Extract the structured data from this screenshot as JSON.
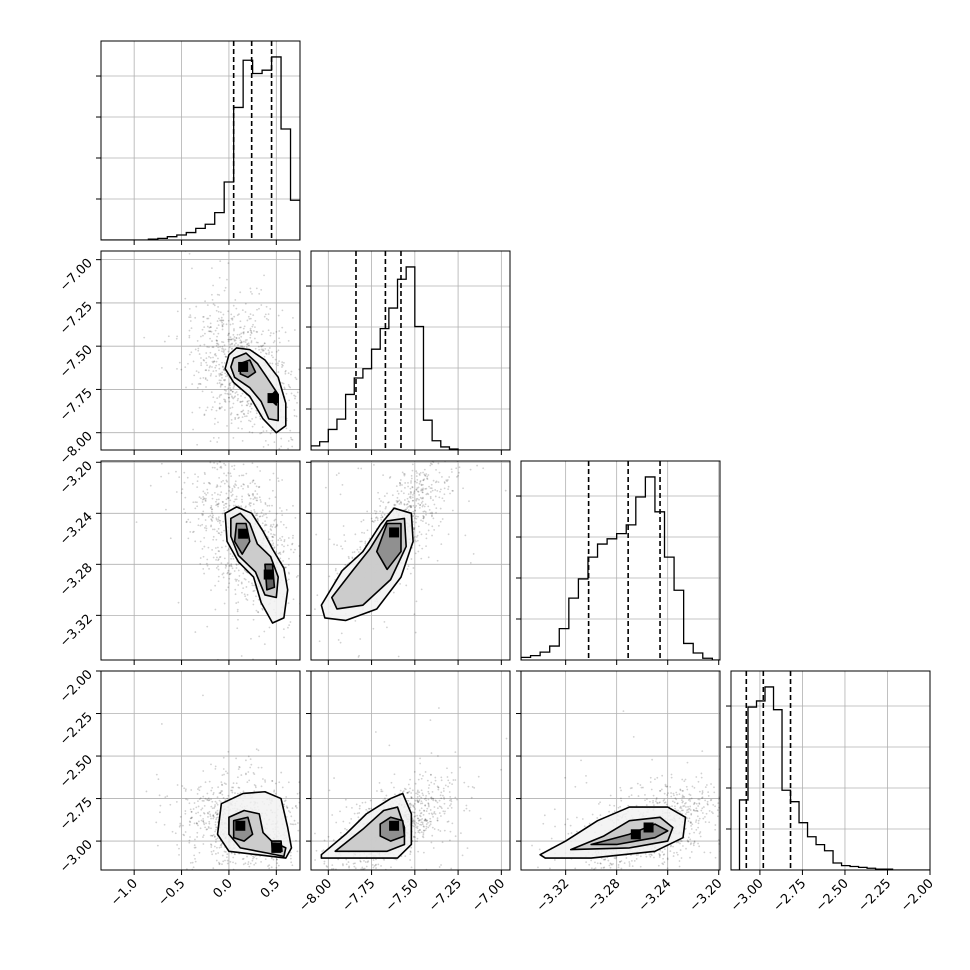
{
  "chart_data": {
    "type": "corner",
    "grid": true,
    "parameters": [
      {
        "range": [
          -1.35,
          0.75
        ],
        "ticks": [
          -1.0,
          -0.5,
          0.0,
          0.5
        ],
        "tick_labels": [
          "−1.0",
          "−0.5",
          "0.0",
          "0.5"
        ],
        "quantiles": [
          0.05,
          0.24,
          0.45
        ],
        "hist_x": [
          -1.35,
          -1.25,
          -1.15,
          -1.05,
          -0.95,
          -0.85,
          -0.75,
          -0.65,
          -0.55,
          -0.45,
          -0.35,
          -0.25,
          -0.15,
          -0.05,
          0.05,
          0.15,
          0.25,
          0.35,
          0.45,
          0.55,
          0.65,
          0.75
        ],
        "hist_counts": [
          0,
          0,
          0,
          0,
          0,
          1,
          2,
          4,
          6,
          9,
          14,
          19,
          33,
          70,
          160,
          217,
          201,
          205,
          221,
          134,
          48,
          5
        ]
      },
      {
        "range": [
          -8.1,
          -6.95
        ],
        "ticks": [
          -8.0,
          -7.75,
          -7.5,
          -7.25,
          -7.0
        ],
        "tick_labels": [
          "−8.00",
          "−7.75",
          "−7.50",
          "−7.25",
          "−7.00"
        ],
        "quantiles": [
          -7.84,
          -7.67,
          -7.58
        ],
        "hist_x": [
          -8.1,
          -8.05,
          -8.0,
          -7.95,
          -7.9,
          -7.85,
          -7.8,
          -7.75,
          -7.7,
          -7.65,
          -7.6,
          -7.55,
          -7.5,
          -7.45,
          -7.4,
          -7.35,
          -7.3,
          -7.25,
          -7.2,
          -7.15,
          -7.1,
          -7.05,
          -7.0,
          -6.95
        ],
        "hist_counts": [
          4,
          8,
          20,
          30,
          54,
          70,
          79,
          98,
          118,
          138,
          166,
          178,
          120,
          29,
          9,
          3,
          1,
          0,
          0,
          0,
          0,
          0,
          0,
          0
        ]
      },
      {
        "range": [
          -3.355,
          -3.199
        ],
        "ticks": [
          -3.32,
          -3.28,
          -3.24,
          -3.2
        ],
        "tick_labels": [
          "−3.32",
          "−3.28",
          "−3.24",
          "−3.20"
        ],
        "quantiles": [
          -3.302,
          -3.271,
          -3.246
        ],
        "hist_x": [
          -3.355,
          -3.3475,
          -3.34,
          -3.3325,
          -3.325,
          -3.3175,
          -3.31,
          -3.3025,
          -3.295,
          -3.2875,
          -3.28,
          -3.2725,
          -3.265,
          -3.2575,
          -3.25,
          -3.2425,
          -3.235,
          -3.2275,
          -3.22,
          -3.2125,
          -3.205,
          -3.199
        ],
        "hist_counts": [
          3,
          5,
          9,
          16,
          36,
          71,
          93,
          118,
          133,
          139,
          145,
          155,
          187,
          210,
          170,
          118,
          80,
          19,
          8,
          2,
          0,
          0
        ]
      },
      {
        "range": [
          -3.17,
          -2.0
        ],
        "ticks": [
          -3.0,
          -2.75,
          -2.5,
          -2.25,
          -2.0
        ],
        "tick_labels": [
          "−3.00",
          "−2.75",
          "−2.50",
          "−2.25",
          "−2.00"
        ],
        "quantiles": [
          -3.08,
          -2.98,
          -2.82
        ],
        "hist_x": [
          -3.17,
          -3.12,
          -3.07,
          -3.02,
          -2.97,
          -2.92,
          -2.87,
          -2.82,
          -2.77,
          -2.72,
          -2.67,
          -2.62,
          -2.57,
          -2.52,
          -2.47,
          -2.42,
          -2.37,
          -2.32,
          -2.27,
          -2.22,
          -2.17,
          -2.12,
          -2.07,
          -2.02,
          -2.0
        ],
        "hist_counts": [
          0,
          80,
          186,
          193,
          209,
          183,
          91,
          78,
          54,
          38,
          29,
          22,
          8,
          5,
          4,
          3,
          2,
          1,
          1,
          0,
          0,
          0,
          0,
          0,
          0
        ]
      }
    ],
    "pairs": [
      {
        "row": 1,
        "col": 0,
        "mode": [
          0.15,
          -7.62
        ],
        "spread": [
          0.28,
          0.2
        ],
        "rho": -0.35,
        "peaks": [
          [
            0.15,
            -7.62
          ],
          [
            0.46,
            -7.8
          ]
        ],
        "contours": [
          [
            [
              0.0,
              -7.55
            ],
            [
              0.08,
              -7.51
            ],
            [
              0.22,
              -7.52
            ],
            [
              0.38,
              -7.58
            ],
            [
              0.52,
              -7.68
            ],
            [
              0.6,
              -7.83
            ],
            [
              0.6,
              -7.96
            ],
            [
              0.5,
              -8.0
            ],
            [
              0.36,
              -7.92
            ],
            [
              0.22,
              -7.79
            ],
            [
              0.05,
              -7.71
            ],
            [
              -0.04,
              -7.63
            ]
          ],
          [
            [
              0.05,
              -7.57
            ],
            [
              0.18,
              -7.54
            ],
            [
              0.3,
              -7.6
            ],
            [
              0.4,
              -7.68
            ],
            [
              0.52,
              -7.78
            ],
            [
              0.52,
              -7.93
            ],
            [
              0.42,
              -7.92
            ],
            [
              0.34,
              -7.82
            ],
            [
              0.22,
              -7.74
            ],
            [
              0.06,
              -7.68
            ],
            [
              0.02,
              -7.62
            ]
          ],
          [
            [
              0.12,
              -7.6
            ],
            [
              0.22,
              -7.58
            ],
            [
              0.28,
              -7.65
            ],
            [
              0.2,
              -7.68
            ],
            [
              0.12,
              -7.66
            ]
          ],
          [
            [
              0.42,
              -7.8
            ],
            [
              0.49,
              -7.76
            ],
            [
              0.5,
              -7.84
            ]
          ]
        ]
      },
      {
        "row": 2,
        "col": 0,
        "mode": [
          0.15,
          -3.256
        ],
        "spread": [
          0.3,
          0.032
        ],
        "rho": -0.45,
        "peaks": [
          [
            0.15,
            -3.256
          ],
          [
            0.42,
            -3.288
          ]
        ],
        "contours": [
          [
            [
              -0.04,
              -3.24
            ],
            [
              0.08,
              -3.235
            ],
            [
              0.24,
              -3.24
            ],
            [
              0.36,
              -3.254
            ],
            [
              0.46,
              -3.268
            ],
            [
              0.58,
              -3.283
            ],
            [
              0.62,
              -3.3
            ],
            [
              0.58,
              -3.322
            ],
            [
              0.46,
              -3.326
            ],
            [
              0.34,
              -3.31
            ],
            [
              0.26,
              -3.29
            ],
            [
              0.1,
              -3.278
            ],
            [
              -0.02,
              -3.262
            ]
          ],
          [
            [
              0.02,
              -3.244
            ],
            [
              0.12,
              -3.24
            ],
            [
              0.22,
              -3.248
            ],
            [
              0.3,
              -3.264
            ],
            [
              0.44,
              -3.274
            ],
            [
              0.52,
              -3.29
            ],
            [
              0.5,
              -3.306
            ],
            [
              0.38,
              -3.304
            ],
            [
              0.28,
              -3.286
            ],
            [
              0.1,
              -3.273
            ],
            [
              0.02,
              -3.258
            ]
          ],
          [
            [
              0.08,
              -3.248
            ],
            [
              0.18,
              -3.248
            ],
            [
              0.22,
              -3.262
            ],
            [
              0.14,
              -3.272
            ],
            [
              0.06,
              -3.262
            ]
          ],
          [
            [
              0.38,
              -3.28
            ],
            [
              0.46,
              -3.28
            ],
            [
              0.48,
              -3.298
            ],
            [
              0.4,
              -3.3
            ]
          ]
        ]
      },
      {
        "row": 2,
        "col": 1,
        "mode": [
          -7.62,
          -3.255
        ],
        "spread": [
          0.16,
          0.03
        ],
        "rho": 0.8,
        "peaks": [
          [
            -7.62,
            -3.255
          ]
        ],
        "contours": [
          [
            [
              -8.04,
              -3.312
            ],
            [
              -7.92,
              -3.285
            ],
            [
              -7.8,
              -3.27
            ],
            [
              -7.7,
              -3.249
            ],
            [
              -7.62,
              -3.236
            ],
            [
              -7.52,
              -3.24
            ],
            [
              -7.51,
              -3.262
            ],
            [
              -7.58,
              -3.29
            ],
            [
              -7.72,
              -3.315
            ],
            [
              -7.9,
              -3.324
            ],
            [
              -8.02,
              -3.322
            ]
          ],
          [
            [
              -7.98,
              -3.306
            ],
            [
              -7.86,
              -3.285
            ],
            [
              -7.76,
              -3.268
            ],
            [
              -7.66,
              -3.246
            ],
            [
              -7.56,
              -3.244
            ],
            [
              -7.55,
              -3.266
            ],
            [
              -7.64,
              -3.292
            ],
            [
              -7.8,
              -3.312
            ],
            [
              -7.95,
              -3.315
            ]
          ],
          [
            [
              -7.72,
              -3.27
            ],
            [
              -7.66,
              -3.248
            ],
            [
              -7.58,
              -3.248
            ],
            [
              -7.58,
              -3.27
            ],
            [
              -7.66,
              -3.284
            ]
          ]
        ]
      },
      {
        "row": 3,
        "col": 0,
        "mode": [
          0.12,
          -2.91
        ],
        "spread": [
          0.33,
          0.15
        ],
        "rho": -0.1,
        "peaks": [
          [
            0.12,
            -2.91
          ],
          [
            0.5,
            -3.04
          ]
        ],
        "contours": [
          [
            [
              -0.08,
              -2.78
            ],
            [
              0.15,
              -2.72
            ],
            [
              0.38,
              -2.71
            ],
            [
              0.55,
              -2.75
            ],
            [
              0.62,
              -2.92
            ],
            [
              0.66,
              -3.04
            ],
            [
              0.6,
              -3.1
            ],
            [
              0.3,
              -3.08
            ],
            [
              0.0,
              -3.06
            ],
            [
              -0.12,
              -2.96
            ]
          ],
          [
            [
              0.0,
              -2.86
            ],
            [
              0.16,
              -2.82
            ],
            [
              0.32,
              -2.84
            ],
            [
              0.36,
              -2.95
            ],
            [
              0.45,
              -3.0
            ],
            [
              0.6,
              -3.04
            ],
            [
              0.58,
              -3.09
            ],
            [
              0.4,
              -3.07
            ],
            [
              0.12,
              -3.04
            ],
            [
              0.0,
              -2.96
            ]
          ],
          [
            [
              0.05,
              -2.88
            ],
            [
              0.2,
              -2.86
            ],
            [
              0.25,
              -2.96
            ],
            [
              0.16,
              -3.0
            ],
            [
              0.05,
              -2.98
            ]
          ],
          [
            [
              0.45,
              -3.0
            ],
            [
              0.55,
              -3.0
            ],
            [
              0.56,
              -3.06
            ],
            [
              0.46,
              -3.06
            ]
          ]
        ]
      },
      {
        "row": 3,
        "col": 1,
        "mode": [
          -7.62,
          -2.91
        ],
        "spread": [
          0.17,
          0.14
        ],
        "rho": 0.7,
        "peaks": [
          [
            -7.62,
            -2.91
          ]
        ],
        "contours": [
          [
            [
              -8.04,
              -3.08
            ],
            [
              -7.9,
              -2.96
            ],
            [
              -7.78,
              -2.84
            ],
            [
              -7.64,
              -2.75
            ],
            [
              -7.57,
              -2.72
            ],
            [
              -7.52,
              -2.84
            ],
            [
              -7.52,
              -3.02
            ],
            [
              -7.6,
              -3.1
            ],
            [
              -7.9,
              -3.1
            ],
            [
              -8.04,
              -3.1
            ]
          ],
          [
            [
              -7.96,
              -3.06
            ],
            [
              -7.8,
              -2.93
            ],
            [
              -7.68,
              -2.82
            ],
            [
              -7.6,
              -2.8
            ],
            [
              -7.56,
              -2.92
            ],
            [
              -7.56,
              -3.02
            ],
            [
              -7.66,
              -3.06
            ]
          ],
          [
            [
              -7.7,
              -2.9
            ],
            [
              -7.64,
              -2.86
            ],
            [
              -7.57,
              -2.88
            ],
            [
              -7.56,
              -2.97
            ],
            [
              -7.64,
              -3.0
            ],
            [
              -7.7,
              -2.97
            ]
          ]
        ]
      },
      {
        "row": 3,
        "col": 2,
        "mode": [
          -3.255,
          -2.92
        ],
        "spread": [
          0.03,
          0.14
        ],
        "rho": 0.55,
        "peaks": [
          [
            -3.255,
            -2.92
          ],
          [
            -3.265,
            -2.96
          ]
        ],
        "contours": [
          [
            [
              -3.34,
              -3.08
            ],
            [
              -3.32,
              -3.0
            ],
            [
              -3.295,
              -2.88
            ],
            [
              -3.27,
              -2.8
            ],
            [
              -3.24,
              -2.8
            ],
            [
              -3.226,
              -2.86
            ],
            [
              -3.228,
              -2.98
            ],
            [
              -3.25,
              -3.06
            ],
            [
              -3.3,
              -3.1
            ],
            [
              -3.336,
              -3.1
            ]
          ],
          [
            [
              -3.316,
              -3.05
            ],
            [
              -3.29,
              -2.97
            ],
            [
              -3.27,
              -2.88
            ],
            [
              -3.246,
              -2.86
            ],
            [
              -3.236,
              -2.92
            ],
            [
              -3.24,
              -3.0
            ],
            [
              -3.27,
              -3.04
            ]
          ],
          [
            [
              -3.3,
              -3.02
            ],
            [
              -3.27,
              -2.96
            ],
            [
              -3.25,
              -2.9
            ],
            [
              -3.24,
              -2.94
            ],
            [
              -3.25,
              -2.98
            ],
            [
              -3.28,
              -3.02
            ]
          ]
        ]
      }
    ]
  }
}
